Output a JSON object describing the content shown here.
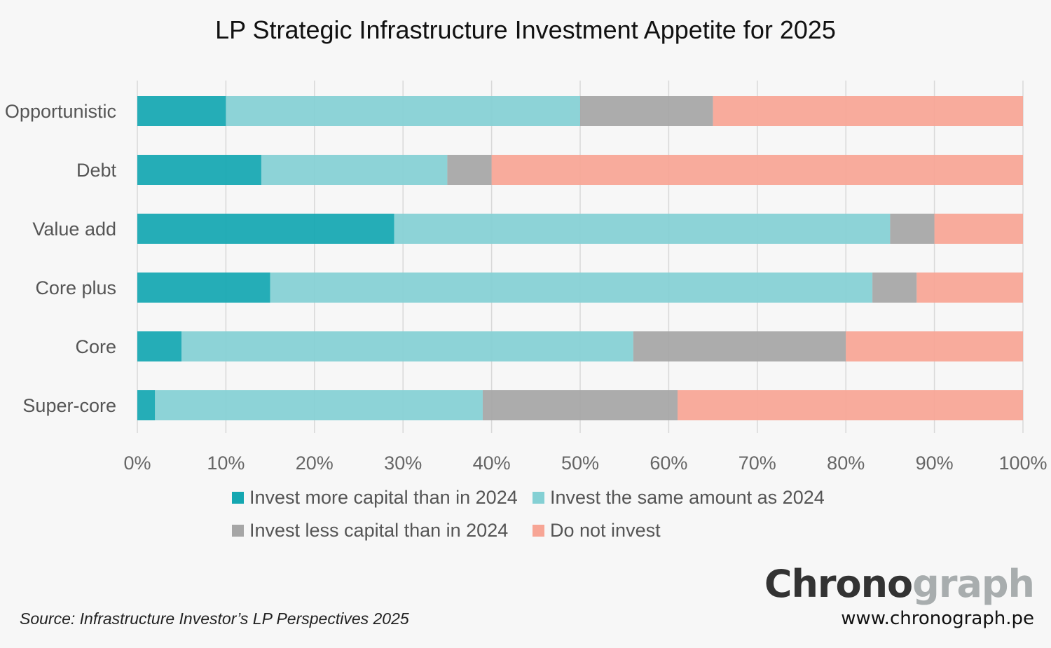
{
  "chart_data": {
    "type": "bar",
    "orientation": "horizontal",
    "stacked": true,
    "title": "LP Strategic Infrastructure Investment Appetite for 2025",
    "categories": [
      "Opportunistic",
      "Debt",
      "Value add",
      "Core plus",
      "Core",
      "Super-core"
    ],
    "series": [
      {
        "name": "Invest more capital than in 2024",
        "color": "#14a7b1",
        "values": [
          10,
          14,
          29,
          15,
          5,
          2
        ]
      },
      {
        "name": "Invest the same amount as 2024",
        "color": "#84d0d4",
        "values": [
          40,
          21,
          56,
          68,
          51,
          37
        ]
      },
      {
        "name": "Invest less capital than in 2024",
        "color": "#a6a6a6",
        "values": [
          15,
          5,
          5,
          5,
          24,
          22
        ]
      },
      {
        "name": "Do not invest",
        "color": "#f7a595",
        "values": [
          35,
          60,
          10,
          12,
          20,
          39
        ]
      }
    ],
    "xlim": [
      0,
      100
    ],
    "xticks": [
      "0%",
      "10%",
      "20%",
      "30%",
      "40%",
      "50%",
      "60%",
      "70%",
      "80%",
      "90%",
      "100%"
    ],
    "grid": true,
    "legend_position": "bottom"
  },
  "source": "Source: Infrastructure Investor’s LP Perspectives 2025",
  "logo": {
    "part1": "Chrono",
    "part2": "graph"
  },
  "url": "www.chronograph.pe"
}
